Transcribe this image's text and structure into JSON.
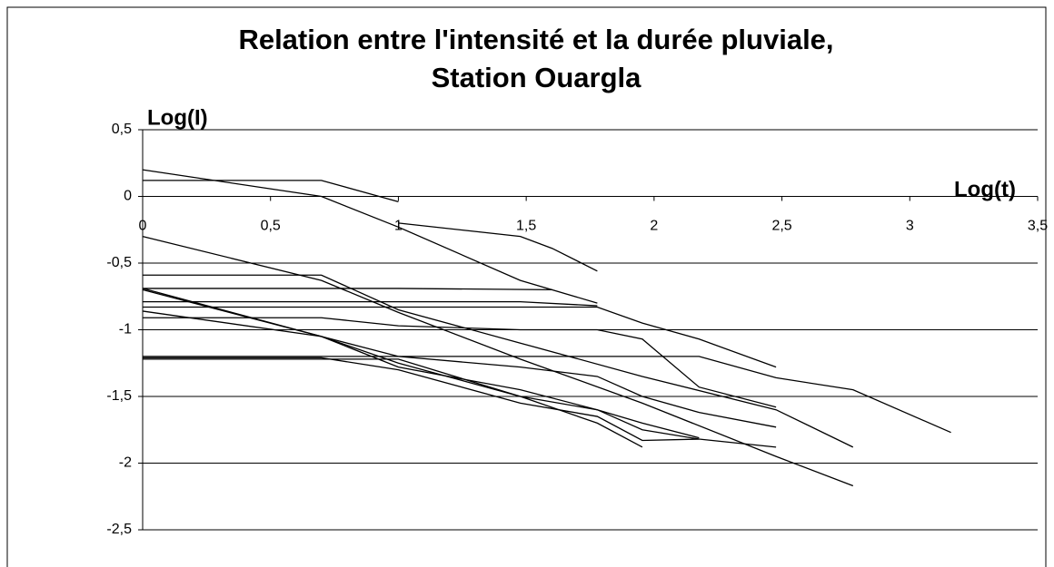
{
  "chart_data": {
    "type": "line",
    "title": [
      "Relation entre  l'intensité et la durée pluviale,",
      "Station Ouargla"
    ],
    "x_label": "Log(t)",
    "y_label": "Log(I)",
    "color": "#000000",
    "grid": true,
    "xlim": [
      0,
      3.5
    ],
    "ylim": [
      -2.5,
      0.5
    ],
    "xticks": [
      0,
      {
        "value": 0.5,
        "label": "0,5"
      },
      1,
      {
        "value": 1.5,
        "label": "1,5"
      },
      2,
      {
        "value": 2.5,
        "label": "2,5"
      },
      3,
      {
        "value": 3.5,
        "label": "3,5"
      }
    ],
    "yticks": [
      {
        "value": 0.5,
        "label": "0,5"
      },
      0,
      {
        "value": -0.5,
        "label": "-0,5"
      },
      -1,
      {
        "value": -1.5,
        "label": "-1,5"
      },
      -2,
      {
        "value": -2.5,
        "label": "-2,5"
      }
    ],
    "series": [
      {
        "x": [
          0,
          0.699,
          1,
          1.477,
          1.778
        ],
        "values": [
          0.2,
          0,
          -0.23,
          -0.63,
          -0.8
        ]
      },
      {
        "x": [
          0,
          0.699,
          1
        ],
        "values": [
          0.12,
          0.12,
          -0.04
        ]
      },
      {
        "x": [
          1,
          1.477,
          1.602,
          1.778
        ],
        "values": [
          -0.2,
          -0.3,
          -0.39,
          -0.56
        ]
      },
      {
        "x": [
          0,
          0.699,
          1,
          1.477,
          1.954,
          2.477,
          2.778
        ],
        "values": [
          -0.3,
          -0.63,
          -0.87,
          -1.22,
          -1.55,
          -1.95,
          -2.17
        ]
      },
      {
        "x": [
          0,
          0.699,
          1,
          1.477,
          1.954,
          2.477,
          2.778
        ],
        "values": [
          -0.59,
          -0.59,
          -0.85,
          -1.1,
          -1.35,
          -1.6,
          -1.88
        ]
      },
      {
        "x": [
          0,
          0.699,
          1,
          1.602
        ],
        "values": [
          -0.69,
          -0.69,
          -0.69,
          -0.7
        ]
      },
      {
        "x": [
          0,
          0.699,
          1,
          1.477,
          1.778
        ],
        "values": [
          -0.79,
          -0.79,
          -0.79,
          -0.79,
          -0.82
        ]
      },
      {
        "x": [
          0,
          0.699,
          1,
          1.477,
          1.778,
          1.954,
          2.176,
          2.477
        ],
        "values": [
          -0.83,
          -0.83,
          -0.83,
          -0.83,
          -0.83,
          -0.95,
          -1.07,
          -1.28
        ]
      },
      {
        "x": [
          0,
          0.699,
          1,
          1.477,
          1.954,
          2.176,
          2.477,
          2.778,
          3.161
        ],
        "values": [
          -1.2,
          -1.2,
          -1.2,
          -1.2,
          -1.2,
          -1.2,
          -1.36,
          -1.45,
          -1.77
        ]
      },
      {
        "x": [
          0,
          0.699,
          1,
          1.477,
          1.778,
          1.954,
          2.176,
          2.477
        ],
        "values": [
          -0.91,
          -0.91,
          -0.97,
          -1,
          -1,
          -1.07,
          -1.43,
          -1.58
        ]
      },
      {
        "x": [
          0,
          0.699,
          1,
          1.477,
          1.778,
          1.954,
          2.176,
          2.477
        ],
        "values": [
          -0.86,
          -1.05,
          -1.2,
          -1.28,
          -1.35,
          -1.5,
          -1.62,
          -1.73
        ]
      },
      {
        "x": [
          0,
          0.699,
          1,
          1.477,
          1.778,
          1.954
        ],
        "values": [
          -0.69,
          -1.05,
          -1.25,
          -1.5,
          -1.7,
          -1.88
        ]
      },
      {
        "x": [
          0,
          0.699,
          1,
          1.477,
          1.778,
          1.954,
          2.176
        ],
        "values": [
          -0.7,
          -1.05,
          -1.28,
          -1.45,
          -1.6,
          -1.7,
          -1.81
        ]
      },
      {
        "x": [
          0,
          0.699,
          1,
          1.477,
          1.778,
          1.954,
          2.176,
          2.477
        ],
        "values": [
          -1.22,
          -1.22,
          -1.22,
          -1.5,
          -1.6,
          -1.75,
          -1.82,
          -1.88
        ]
      },
      {
        "x": [
          0,
          0.699,
          1,
          1.477,
          1.778,
          1.954,
          2.176
        ],
        "values": [
          -1.21,
          -1.21,
          -1.3,
          -1.55,
          -1.65,
          -1.83,
          -1.82
        ]
      }
    ]
  }
}
